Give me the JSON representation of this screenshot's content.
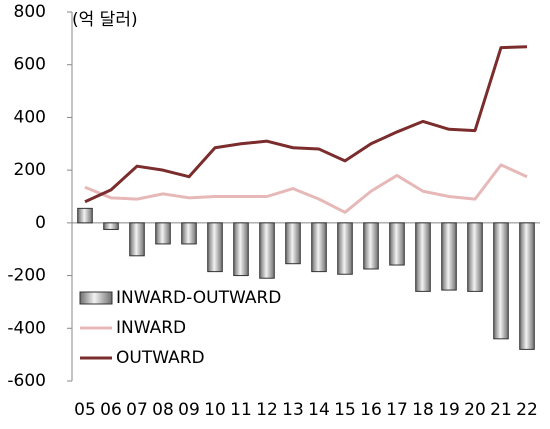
{
  "chart_data": {
    "type": "combo",
    "unit_label": "(억 달러)",
    "categories": [
      "05",
      "06",
      "07",
      "08",
      "09",
      "10",
      "11",
      "12",
      "13",
      "14",
      "15",
      "16",
      "17",
      "18",
      "19",
      "20",
      "21",
      "22"
    ],
    "series": [
      {
        "name": "INWARD-OUTWARD",
        "type": "bar",
        "color": "#a6a6a6",
        "values": [
          55,
          -25,
          -125,
          -80,
          -80,
          -185,
          -200,
          -210,
          -155,
          -185,
          -195,
          -175,
          -160,
          -260,
          -255,
          -260,
          -440,
          -480
        ]
      },
      {
        "name": "INWARD",
        "type": "line",
        "color": "#e6b9b8",
        "values": [
          135,
          95,
          90,
          110,
          95,
          100,
          100,
          100,
          130,
          90,
          40,
          120,
          180,
          120,
          100,
          90,
          220,
          175
        ]
      },
      {
        "name": "OUTWARD",
        "type": "line",
        "color": "#7b2c2c",
        "values": [
          80,
          125,
          215,
          200,
          175,
          285,
          300,
          310,
          285,
          280,
          235,
          300,
          345,
          385,
          355,
          350,
          665,
          668
        ]
      }
    ],
    "ylim": [
      -600,
      800
    ],
    "yticks": [
      -600,
      -400,
      -200,
      0,
      200,
      400,
      600,
      800
    ],
    "grid": false,
    "legend": "lower-left"
  }
}
